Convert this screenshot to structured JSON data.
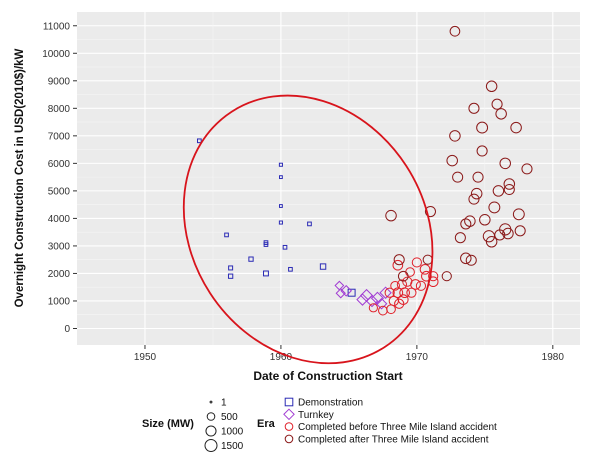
{
  "chart_data": {
    "type": "scatter",
    "title": "",
    "xlabel": "Date of Construction Start",
    "ylabel": "Overnight Construction Cost in USD(2010$)/kW",
    "xlim": [
      1945,
      1982
    ],
    "ylim": [
      -600,
      11500
    ],
    "x_ticks": [
      1950,
      1960,
      1970,
      1980
    ],
    "y_ticks": [
      0,
      1000,
      2000,
      3000,
      4000,
      5000,
      6000,
      7000,
      8000,
      9000,
      10000,
      11000
    ],
    "grid": true,
    "legend_placement": "bottom",
    "colors": {
      "panel_bg": "#ebebeb",
      "grid": "#ffffff",
      "demonstration": "#2b2bb5",
      "turnkey": "#a13cd3",
      "before_tmi": "#e0202a",
      "after_tmi": "#8b1a1a",
      "ellipse": "#d8141c"
    },
    "size_legend": {
      "title": "Size (MW)",
      "entries": [
        "1",
        "500",
        "1000",
        "1500"
      ]
    },
    "era_legend": {
      "title": "Era",
      "entries": [
        {
          "label": "Demonstration",
          "series": "demonstration",
          "shape": "square"
        },
        {
          "label": "Turnkey",
          "series": "turnkey",
          "shape": "diamond"
        },
        {
          "label": "Completed before Three Mile Island accident",
          "series": "before_tmi",
          "shape": "circle"
        },
        {
          "label": "Completed after Three Mile Island accident",
          "series": "after_tmi",
          "shape": "circle"
        }
      ]
    },
    "ellipse": {
      "cx": 1962.0,
      "cy": 3600,
      "rx": 8.6,
      "ry": 5100,
      "rotation_deg": -33
    },
    "series": [
      {
        "key": "demonstration",
        "shape": "square",
        "points": [
          {
            "x": 1954.0,
            "y": 6820,
            "size": 60
          },
          {
            "x": 1956.0,
            "y": 3400,
            "size": 60
          },
          {
            "x": 1956.3,
            "y": 2200,
            "size": 80
          },
          {
            "x": 1956.3,
            "y": 1900,
            "size": 100
          },
          {
            "x": 1957.8,
            "y": 2520,
            "size": 100
          },
          {
            "x": 1958.9,
            "y": 3120,
            "size": 60
          },
          {
            "x": 1958.9,
            "y": 3050,
            "size": 60
          },
          {
            "x": 1958.9,
            "y": 2000,
            "size": 150
          },
          {
            "x": 1960.0,
            "y": 5950,
            "size": 30
          },
          {
            "x": 1960.0,
            "y": 5500,
            "size": 20
          },
          {
            "x": 1960.0,
            "y": 4450,
            "size": 20
          },
          {
            "x": 1960.0,
            "y": 3850,
            "size": 30
          },
          {
            "x": 1960.3,
            "y": 2950,
            "size": 60
          },
          {
            "x": 1960.7,
            "y": 2150,
            "size": 60
          },
          {
            "x": 1962.1,
            "y": 3800,
            "size": 60
          },
          {
            "x": 1963.1,
            "y": 2250,
            "size": 200
          },
          {
            "x": 1965.2,
            "y": 1300,
            "size": 400
          }
        ]
      },
      {
        "key": "turnkey",
        "shape": "diamond",
        "points": [
          {
            "x": 1964.3,
            "y": 1560,
            "size": 300
          },
          {
            "x": 1964.4,
            "y": 1280,
            "size": 350
          },
          {
            "x": 1964.8,
            "y": 1370,
            "size": 500
          },
          {
            "x": 1966.0,
            "y": 1050,
            "size": 600
          },
          {
            "x": 1966.3,
            "y": 1200,
            "size": 700
          },
          {
            "x": 1966.7,
            "y": 1000,
            "size": 600
          },
          {
            "x": 1967.1,
            "y": 1100,
            "size": 700
          },
          {
            "x": 1967.4,
            "y": 900,
            "size": 500
          },
          {
            "x": 1967.7,
            "y": 1300,
            "size": 600
          }
        ]
      },
      {
        "key": "before_tmi",
        "shape": "circle",
        "points": [
          {
            "x": 1966.8,
            "y": 750,
            "size": 600
          },
          {
            "x": 1967.5,
            "y": 650,
            "size": 700
          },
          {
            "x": 1968.0,
            "y": 1300,
            "size": 800
          },
          {
            "x": 1968.1,
            "y": 700,
            "size": 700
          },
          {
            "x": 1968.3,
            "y": 1000,
            "size": 800
          },
          {
            "x": 1968.4,
            "y": 1550,
            "size": 700
          },
          {
            "x": 1968.6,
            "y": 2300,
            "size": 900
          },
          {
            "x": 1968.6,
            "y": 1300,
            "size": 900
          },
          {
            "x": 1968.7,
            "y": 900,
            "size": 800
          },
          {
            "x": 1968.9,
            "y": 1600,
            "size": 800
          },
          {
            "x": 1969.0,
            "y": 1050,
            "size": 900
          },
          {
            "x": 1969.1,
            "y": 1300,
            "size": 900
          },
          {
            "x": 1969.3,
            "y": 1700,
            "size": 800
          },
          {
            "x": 1969.6,
            "y": 1300,
            "size": 800
          },
          {
            "x": 1969.9,
            "y": 1600,
            "size": 900
          },
          {
            "x": 1970.0,
            "y": 2400,
            "size": 800
          },
          {
            "x": 1970.3,
            "y": 1550,
            "size": 800
          },
          {
            "x": 1970.6,
            "y": 2150,
            "size": 900
          },
          {
            "x": 1970.7,
            "y": 1900,
            "size": 900
          },
          {
            "x": 1971.2,
            "y": 1700,
            "size": 900
          },
          {
            "x": 1971.2,
            "y": 1900,
            "size": 800
          },
          {
            "x": 1969.5,
            "y": 2050,
            "size": 700
          }
        ]
      },
      {
        "key": "after_tmi",
        "shape": "circle",
        "points": [
          {
            "x": 1968.1,
            "y": 4100,
            "size": 1100
          },
          {
            "x": 1968.7,
            "y": 2500,
            "size": 1000
          },
          {
            "x": 1969.0,
            "y": 1900,
            "size": 900
          },
          {
            "x": 1970.8,
            "y": 2500,
            "size": 800
          },
          {
            "x": 1971.0,
            "y": 4250,
            "size": 1000
          },
          {
            "x": 1972.2,
            "y": 1900,
            "size": 800
          },
          {
            "x": 1972.6,
            "y": 6100,
            "size": 1100
          },
          {
            "x": 1972.8,
            "y": 7000,
            "size": 1100
          },
          {
            "x": 1972.8,
            "y": 10800,
            "size": 900
          },
          {
            "x": 1973.0,
            "y": 5500,
            "size": 1000
          },
          {
            "x": 1973.2,
            "y": 3300,
            "size": 1000
          },
          {
            "x": 1973.6,
            "y": 3800,
            "size": 1000
          },
          {
            "x": 1973.6,
            "y": 2550,
            "size": 1100
          },
          {
            "x": 1973.9,
            "y": 3900,
            "size": 1100
          },
          {
            "x": 1974.0,
            "y": 2480,
            "size": 1000
          },
          {
            "x": 1974.2,
            "y": 4700,
            "size": 1000
          },
          {
            "x": 1974.2,
            "y": 8000,
            "size": 1000
          },
          {
            "x": 1974.4,
            "y": 4900,
            "size": 1100
          },
          {
            "x": 1974.5,
            "y": 5500,
            "size": 1000
          },
          {
            "x": 1974.8,
            "y": 6450,
            "size": 1000
          },
          {
            "x": 1974.8,
            "y": 7300,
            "size": 1200
          },
          {
            "x": 1975.0,
            "y": 3950,
            "size": 1100
          },
          {
            "x": 1975.3,
            "y": 3350,
            "size": 1300
          },
          {
            "x": 1975.5,
            "y": 3150,
            "size": 1100
          },
          {
            "x": 1975.5,
            "y": 8800,
            "size": 1100
          },
          {
            "x": 1975.7,
            "y": 4400,
            "size": 1200
          },
          {
            "x": 1975.9,
            "y": 8150,
            "size": 1000
          },
          {
            "x": 1976.0,
            "y": 5000,
            "size": 1100
          },
          {
            "x": 1976.1,
            "y": 3400,
            "size": 1000
          },
          {
            "x": 1976.2,
            "y": 7800,
            "size": 1100
          },
          {
            "x": 1976.5,
            "y": 6000,
            "size": 1100
          },
          {
            "x": 1976.5,
            "y": 3600,
            "size": 1300
          },
          {
            "x": 1976.7,
            "y": 3450,
            "size": 1100
          },
          {
            "x": 1976.8,
            "y": 5050,
            "size": 1000
          },
          {
            "x": 1976.8,
            "y": 5250,
            "size": 1100
          },
          {
            "x": 1977.3,
            "y": 7300,
            "size": 1100
          },
          {
            "x": 1977.5,
            "y": 4150,
            "size": 1200
          },
          {
            "x": 1977.6,
            "y": 3550,
            "size": 1000
          },
          {
            "x": 1978.1,
            "y": 5800,
            "size": 1000
          }
        ]
      }
    ]
  }
}
